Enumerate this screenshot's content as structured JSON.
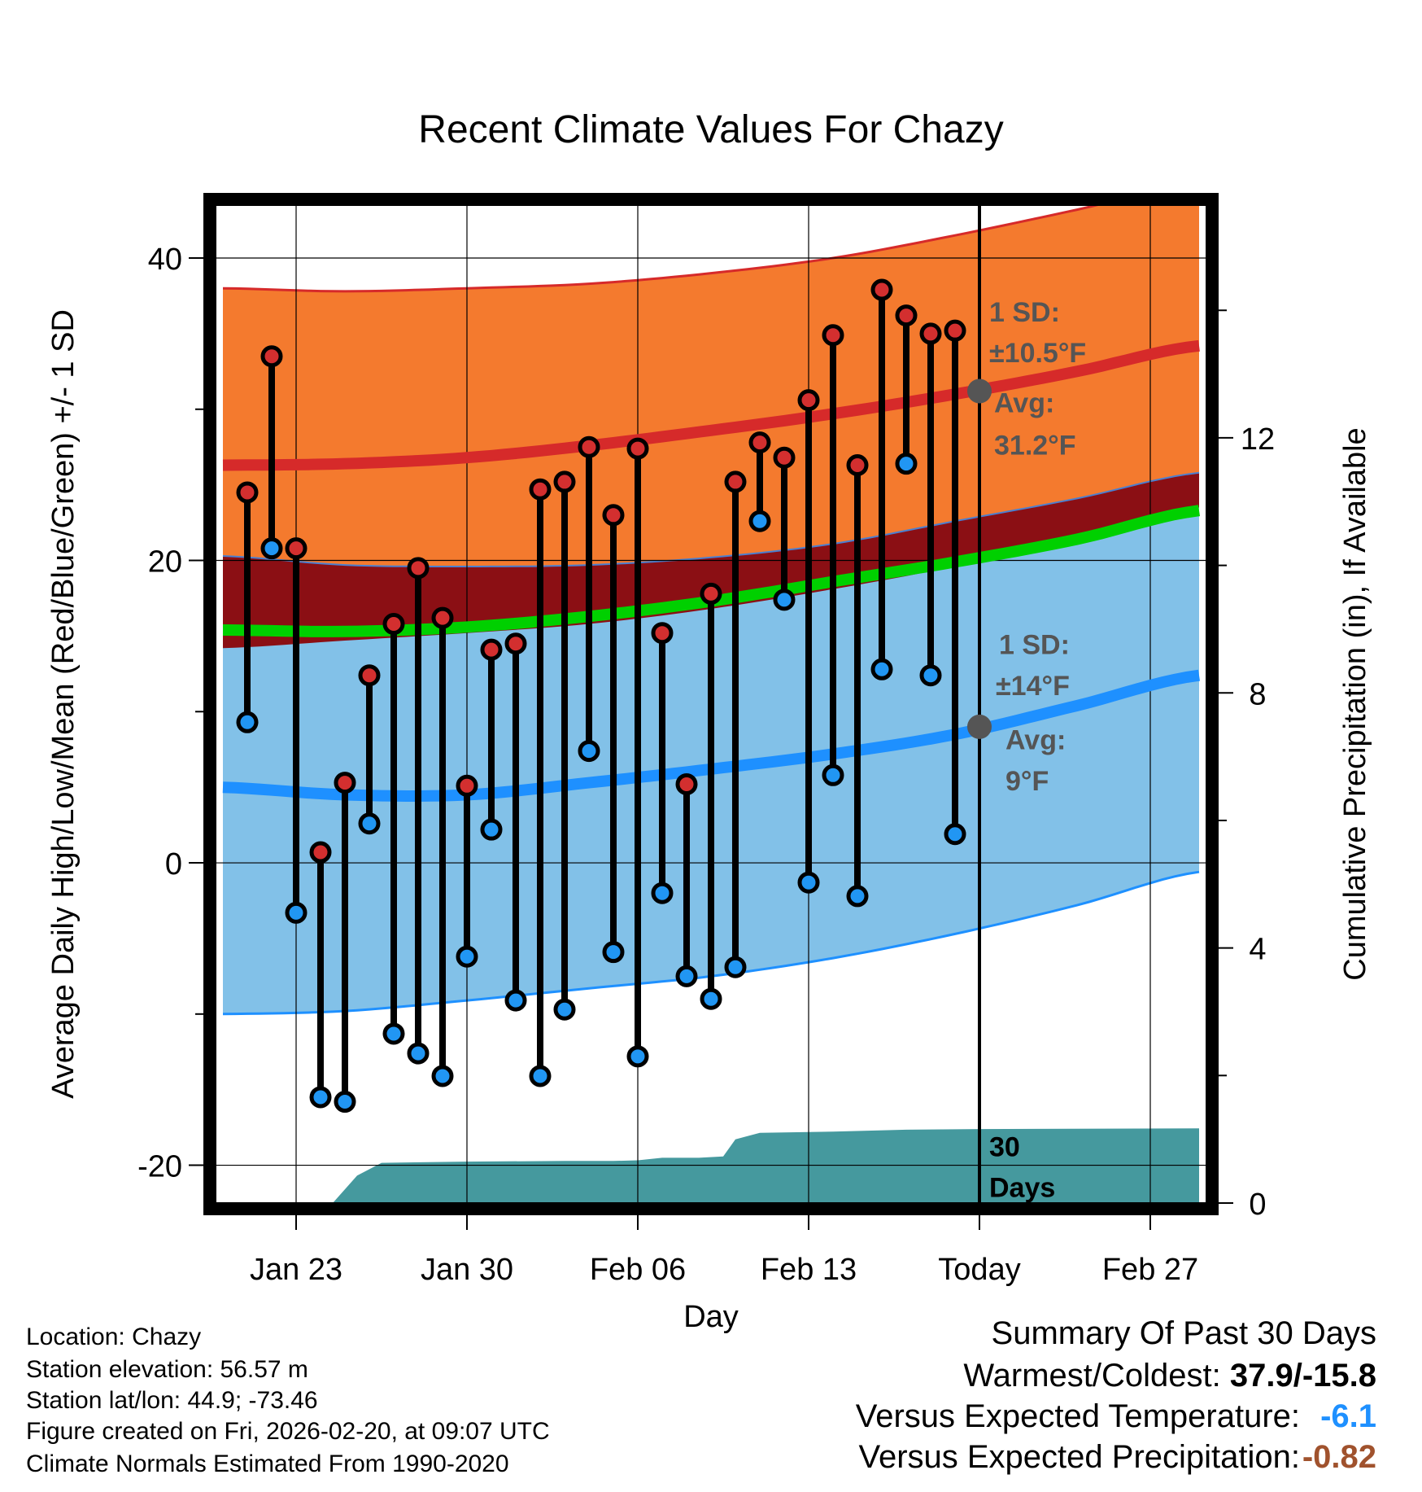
{
  "chart_data": {
    "type": "line",
    "title": "Recent Climate Values For Chazy",
    "xlabel": "Day",
    "ylabel": "Average Daily High/Low/Mean (Red/Blue/Green) +/- 1 SD",
    "y2label": "Cumulative Precipitation (in), If Available",
    "ylim": [
      -22.5,
      43.5
    ],
    "y2lim": [
      0,
      15.65
    ],
    "yticks": [
      -20,
      0,
      20,
      40
    ],
    "y2ticks": [
      0,
      4,
      8,
      12
    ],
    "xlim": [
      -0.3,
      40.3
    ],
    "xticks": [
      {
        "day": 3,
        "label": "Jan 23"
      },
      {
        "day": 10,
        "label": "Jan 30"
      },
      {
        "day": 17,
        "label": "Feb 06"
      },
      {
        "day": 24,
        "label": "Feb 13"
      },
      {
        "day": 31,
        "label": "Today"
      },
      {
        "day": 38,
        "label": "Feb 27"
      }
    ],
    "today_day": 31,
    "normals": {
      "days": [
        0,
        5,
        10,
        15,
        20,
        25,
        30,
        35,
        40
      ],
      "high_avg": [
        26.3,
        26.4,
        26.8,
        27.6,
        28.6,
        29.7,
        31.0,
        32.5,
        34.2
      ],
      "high_sd_upper": [
        38.0,
        37.8,
        38.0,
        38.3,
        39.0,
        40.0,
        41.5,
        43.2,
        45.0
      ],
      "low_avg": [
        5.0,
        4.5,
        4.5,
        5.3,
        6.2,
        7.2,
        8.5,
        10.4,
        12.4
      ],
      "low_sd_lower": [
        -10.0,
        -9.8,
        -9.1,
        -8.3,
        -7.5,
        -6.3,
        -4.7,
        -2.8,
        -0.6
      ],
      "mean_avg": [
        15.4,
        15.3,
        15.6,
        16.3,
        17.3,
        18.6,
        19.9,
        21.4,
        23.3
      ],
      "low_sd_upper_dark": [
        20.3,
        19.7,
        19.6,
        19.7,
        20.2,
        21.1,
        22.6,
        24.1,
        25.8
      ],
      "high_sd_lower_dark": [
        14.2,
        14.7,
        15.2,
        15.8,
        16.8,
        18.1,
        19.6,
        21.4,
        23.5
      ]
    },
    "observations": [
      {
        "day": 1,
        "high": 24.5,
        "low": 9.3
      },
      {
        "day": 2,
        "high": 33.5,
        "low": 20.8
      },
      {
        "day": 3,
        "high": 20.8,
        "low": -3.3
      },
      {
        "day": 4,
        "high": 0.7,
        "low": -15.5
      },
      {
        "day": 5,
        "high": 5.3,
        "low": -15.8
      },
      {
        "day": 6,
        "high": 12.4,
        "low": 2.6
      },
      {
        "day": 7,
        "high": 15.8,
        "low": -11.3
      },
      {
        "day": 8,
        "high": 19.5,
        "low": -12.6
      },
      {
        "day": 9,
        "high": 16.2,
        "low": -14.1
      },
      {
        "day": 10,
        "high": 5.1,
        "low": -6.2
      },
      {
        "day": 11,
        "high": 14.1,
        "low": 2.2
      },
      {
        "day": 12,
        "high": 14.5,
        "low": -9.1
      },
      {
        "day": 13,
        "high": 24.7,
        "low": -14.1
      },
      {
        "day": 14,
        "high": 25.2,
        "low": -9.7
      },
      {
        "day": 15,
        "high": 27.5,
        "low": 7.4
      },
      {
        "day": 16,
        "high": 23.0,
        "low": -5.9
      },
      {
        "day": 17,
        "high": 27.4,
        "low": -12.8
      },
      {
        "day": 18,
        "high": 15.2,
        "low": -2.0
      },
      {
        "day": 19,
        "high": 5.2,
        "low": -7.5
      },
      {
        "day": 20,
        "high": 17.8,
        "low": -9.0
      },
      {
        "day": 21,
        "high": 25.2,
        "low": -6.9
      },
      {
        "day": 22,
        "high": 27.8,
        "low": 22.6
      },
      {
        "day": 23,
        "high": 26.8,
        "low": 17.4
      },
      {
        "day": 24,
        "high": 30.6,
        "low": -1.3
      },
      {
        "day": 25,
        "high": 34.9,
        "low": 5.8
      },
      {
        "day": 26,
        "high": 26.3,
        "low": -2.2
      },
      {
        "day": 27,
        "high": 37.9,
        "low": 12.8
      },
      {
        "day": 28,
        "high": 36.2,
        "low": 26.4
      },
      {
        "day": 29,
        "high": 35.0,
        "low": 12.4
      },
      {
        "day": 30,
        "high": 35.2,
        "low": 1.9
      }
    ],
    "precip_cumulative": {
      "days": [
        4.5,
        5.5,
        6.5,
        10,
        14,
        16,
        17,
        18,
        19.5,
        20.5,
        21,
        22,
        25,
        28,
        31,
        40
      ],
      "values": [
        0.0,
        0.43,
        0.63,
        0.65,
        0.66,
        0.66,
        0.67,
        0.71,
        0.71,
        0.73,
        1.0,
        1.1,
        1.12,
        1.15,
        1.16,
        1.17
      ]
    },
    "annotations": {
      "high_sd": "1 SD:",
      "high_sd_val": "±10.5°F",
      "high_avg": "Avg:",
      "high_avg_val": "31.2°F",
      "low_sd": "1 SD:",
      "low_sd_val": "±14°F",
      "low_avg": "Avg:",
      "low_avg_val": "9°F",
      "days_count": "30",
      "days_label": "Days",
      "high_avg_today": 31.2,
      "low_avg_today": 9
    },
    "colors": {
      "high_band": "#f47a2e",
      "high_line": "#d62a2a",
      "low_band": "#82c1e8",
      "low_line": "#1e90ff",
      "mean_line": "#00d000",
      "overlap": "#8b0f14",
      "precip": "#45999e",
      "high_dot": "#d32f2f",
      "low_dot": "#2196f3",
      "today_dot": "#555555",
      "annot": "#555555"
    }
  },
  "info": {
    "location": "Location: Chazy",
    "elevation": "Station elevation: 56.57 m",
    "latlon": "Station lat/lon: 44.9; -73.46",
    "created": "Figure created on Fri, 2026-02-20, at 09:07 UTC",
    "normals": "Climate Normals Estimated From 1990-2020"
  },
  "summary": {
    "title": "Summary Of Past 30 Days",
    "warmest_label": "Warmest/Coldest: ",
    "warmest_value": "37.9/-15.8",
    "temp_label": "Versus Expected Temperature:",
    "temp_value": "-6.1",
    "precip_label": "Versus Expected Precipitation:",
    "precip_value": "-0.82"
  }
}
